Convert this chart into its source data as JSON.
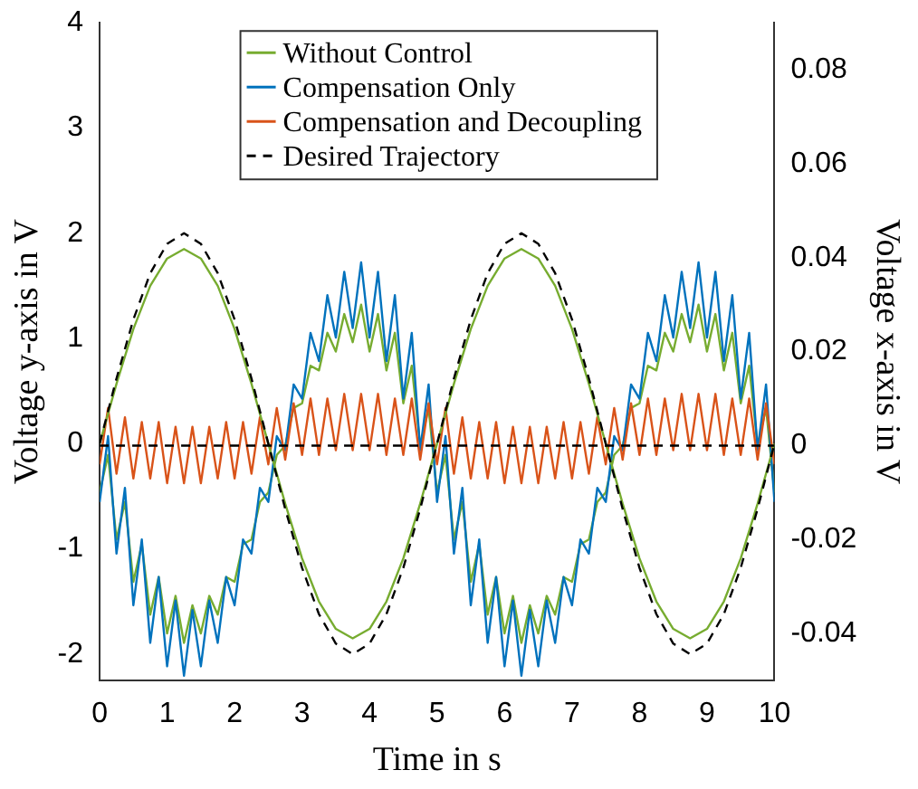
{
  "chart_data": {
    "type": "line",
    "xlabel": "Time in s",
    "ylabel": "Voltage y-axis in V",
    "y2label": "Voltage x-axis in V",
    "x": [
      0,
      0.25,
      0.5,
      0.75,
      1,
      1.25,
      1.5,
      1.75,
      2,
      2.25,
      2.5,
      2.75,
      3,
      3.25,
      3.5,
      3.75,
      4,
      4.25,
      4.5,
      4.75,
      5,
      5.25,
      5.5,
      5.75,
      6,
      6.25,
      6.5,
      6.75,
      7,
      7.25,
      7.5,
      7.75,
      8,
      8.25,
      8.5,
      8.75,
      9,
      9.25,
      9.5,
      9.75,
      10
    ],
    "xlim": [
      0,
      10
    ],
    "xticks": [
      0,
      1,
      2,
      3,
      4,
      5,
      6,
      7,
      8,
      9,
      10
    ],
    "ylim": [
      -2.25,
      4
    ],
    "yticks": [
      -2,
      -1,
      0,
      1,
      2,
      3,
      4
    ],
    "y2lim": [
      -0.05,
      0.09
    ],
    "y2ticks": [
      -0.04,
      -0.02,
      0,
      0.02,
      0.04,
      0.06,
      0.08
    ],
    "grid": false,
    "legend": "top",
    "marker": "none",
    "series": [
      {
        "name": "Without Control",
        "axis": "y2",
        "color": "#77ac30",
        "x": [
          0,
          0.125,
          0.25,
          0.375,
          0.5,
          0.625,
          0.75,
          0.875,
          1,
          1.125,
          1.25,
          1.375,
          1.5,
          1.625,
          1.75,
          1.875,
          2,
          2.125,
          2.25,
          2.375,
          2.5,
          2.625,
          2.75,
          2.875,
          3,
          3.125,
          3.25,
          3.375,
          3.5,
          3.625,
          3.75,
          3.875,
          4,
          4.125,
          4.25,
          4.375,
          4.5,
          4.625,
          4.75,
          4.875,
          5,
          5.125,
          5.25,
          5.375,
          5.5,
          5.625,
          5.75,
          5.875,
          6,
          6.125,
          6.25,
          6.375,
          6.5,
          6.625,
          6.75,
          6.875,
          7,
          7.125,
          7.25,
          7.375,
          7.5,
          7.625,
          7.75,
          7.875,
          8,
          8.125,
          8.25,
          8.375,
          8.5,
          8.625,
          8.75,
          8.875,
          9,
          9.125,
          9.25,
          9.375,
          9.5,
          9.625,
          9.75,
          9.875,
          10
        ],
        "values": [
          -0.01,
          -0.002,
          -0.02,
          -0.012,
          -0.029,
          -0.021,
          -0.036,
          -0.028,
          -0.04,
          -0.032,
          -0.042,
          -0.034,
          -0.04,
          -0.032,
          -0.036,
          -0.028,
          -0.029,
          -0.021,
          -0.02,
          -0.012,
          -0.01,
          -0.002,
          0,
          0.008,
          0.009,
          0.017,
          0.016,
          0.024,
          0.02,
          0.028,
          0.022,
          0.03,
          0.02,
          0.028,
          0.016,
          0.024,
          0.009,
          0.017,
          0,
          0.008,
          -0.01,
          -0.002,
          -0.02,
          -0.012,
          -0.029,
          -0.021,
          -0.036,
          -0.028,
          -0.04,
          -0.032,
          -0.042,
          -0.034,
          -0.04,
          -0.032,
          -0.036,
          -0.028,
          -0.029,
          -0.021,
          -0.02,
          -0.012,
          -0.01,
          -0.002,
          0,
          0.008,
          0.009,
          0.017,
          0.016,
          0.024,
          0.02,
          0.028,
          0.022,
          0.03,
          0.02,
          0.028,
          0.016,
          0.024,
          0.009,
          0.017,
          0,
          0.008,
          -0.01
        ]
      },
      {
        "name": "Compensation Only",
        "axis": "y2",
        "color": "#0072bd",
        "x": [
          0,
          0.125,
          0.25,
          0.375,
          0.5,
          0.625,
          0.75,
          0.875,
          1,
          1.125,
          1.25,
          1.375,
          1.5,
          1.625,
          1.75,
          1.875,
          2,
          2.125,
          2.25,
          2.375,
          2.5,
          2.625,
          2.75,
          2.875,
          3,
          3.125,
          3.25,
          3.375,
          3.5,
          3.625,
          3.75,
          3.875,
          4,
          4.125,
          4.25,
          4.375,
          4.5,
          4.625,
          4.75,
          4.875,
          5,
          5.125,
          5.25,
          5.375,
          5.5,
          5.625,
          5.75,
          5.875,
          6,
          6.125,
          6.25,
          6.375,
          6.5,
          6.625,
          6.75,
          6.875,
          7,
          7.125,
          7.25,
          7.375,
          7.5,
          7.625,
          7.75,
          7.875,
          8,
          8.125,
          8.25,
          8.375,
          8.5,
          8.625,
          8.75,
          8.875,
          9,
          9.125,
          9.25,
          9.375,
          9.5,
          9.625,
          9.75,
          9.875,
          10
        ],
        "values": [
          -0.012,
          0.002,
          -0.023,
          -0.009,
          -0.034,
          -0.02,
          -0.042,
          -0.028,
          -0.047,
          -0.033,
          -0.049,
          -0.035,
          -0.047,
          -0.033,
          -0.042,
          -0.028,
          -0.034,
          -0.02,
          -0.023,
          -0.009,
          -0.012,
          0.002,
          -0.001,
          0.013,
          0.01,
          0.024,
          0.018,
          0.032,
          0.023,
          0.037,
          0.025,
          0.039,
          0.023,
          0.037,
          0.018,
          0.032,
          0.01,
          0.024,
          -0.001,
          0.013,
          -0.012,
          0.002,
          -0.023,
          -0.009,
          -0.034,
          -0.02,
          -0.042,
          -0.028,
          -0.047,
          -0.033,
          -0.049,
          -0.035,
          -0.047,
          -0.033,
          -0.042,
          -0.028,
          -0.034,
          -0.02,
          -0.023,
          -0.009,
          -0.012,
          0.002,
          -0.001,
          0.013,
          0.01,
          0.024,
          0.018,
          0.032,
          0.023,
          0.037,
          0.025,
          0.039,
          0.023,
          0.037,
          0.018,
          0.032,
          0.01,
          0.024,
          -0.001,
          0.013,
          -0.012
        ]
      },
      {
        "name": "Compensation and Decoupling",
        "axis": "y2",
        "color": "#d95319",
        "x": [
          0,
          0.125,
          0.25,
          0.375,
          0.5,
          0.625,
          0.75,
          0.875,
          1,
          1.125,
          1.25,
          1.375,
          1.5,
          1.625,
          1.75,
          1.875,
          2,
          2.125,
          2.25,
          2.375,
          2.5,
          2.625,
          2.75,
          2.875,
          3,
          3.125,
          3.25,
          3.375,
          3.5,
          3.625,
          3.75,
          3.875,
          4,
          4.125,
          4.25,
          4.375,
          4.5,
          4.625,
          4.75,
          4.875,
          5,
          5.125,
          5.25,
          5.375,
          5.5,
          5.625,
          5.75,
          5.875,
          6,
          6.125,
          6.25,
          6.375,
          6.5,
          6.625,
          6.75,
          6.875,
          7,
          7.125,
          7.25,
          7.375,
          7.5,
          7.625,
          7.75,
          7.875,
          8,
          8.125,
          8.25,
          8.375,
          8.5,
          8.625,
          8.75,
          8.875,
          9,
          9.125,
          9.25,
          9.375,
          9.5,
          9.625,
          9.75,
          9.875,
          10
        ],
        "values": [
          -0.004,
          0.008,
          -0.006,
          0.006,
          -0.007,
          0.005,
          -0.007,
          0.005,
          -0.008,
          0.004,
          -0.008,
          0.004,
          -0.008,
          0.004,
          -0.007,
          0.005,
          -0.007,
          0.005,
          -0.006,
          0.006,
          -0.004,
          0.008,
          -0.003,
          0.009,
          -0.002,
          0.01,
          -0.002,
          0.01,
          -0.001,
          0.011,
          -0.001,
          0.011,
          -0.001,
          0.011,
          -0.002,
          0.01,
          -0.002,
          0.01,
          -0.003,
          0.009,
          -0.004,
          0.008,
          -0.006,
          0.006,
          -0.007,
          0.005,
          -0.007,
          0.005,
          -0.008,
          0.004,
          -0.008,
          0.004,
          -0.008,
          0.004,
          -0.007,
          0.005,
          -0.007,
          0.005,
          -0.006,
          0.006,
          -0.004,
          0.008,
          -0.003,
          0.009,
          -0.002,
          0.01,
          -0.002,
          0.01,
          -0.001,
          0.011,
          -0.001,
          0.011,
          -0.001,
          0.011,
          -0.002,
          0.01,
          -0.002,
          0.01,
          -0.003,
          0.009,
          -0.004
        ]
      },
      {
        "color": "#77ac30",
        "values": [
          0,
          0.57,
          1.09,
          1.5,
          1.76,
          1.85,
          1.76,
          1.5,
          1.09,
          0.57,
          0,
          -0.57,
          -1.09,
          -1.5,
          -1.76,
          -1.85,
          -1.76,
          -1.5,
          -1.09,
          -0.57,
          0,
          0.57,
          1.09,
          1.5,
          1.76,
          1.85,
          1.76,
          1.5,
          1.09,
          0.57,
          0,
          -0.57,
          -1.09,
          -1.5,
          -1.76,
          -1.85,
          -1.76,
          -1.5,
          -1.09,
          -0.57,
          0
        ]
      },
      {
        "name": "Desired Trajectory",
        "color": "#000000",
        "line_style": "dashed",
        "values": [
          0,
          0.62,
          1.18,
          1.62,
          1.9,
          2,
          1.9,
          1.62,
          1.18,
          0.62,
          0,
          -0.62,
          -1.18,
          -1.62,
          -1.9,
          -2,
          -1.9,
          -1.62,
          -1.18,
          -0.62,
          0,
          0.62,
          1.18,
          1.62,
          1.9,
          2,
          1.9,
          1.62,
          1.18,
          0.62,
          0,
          -0.62,
          -1.18,
          -1.62,
          -1.9,
          -2,
          -1.9,
          -1.62,
          -1.18,
          -0.62,
          0
        ]
      },
      {
        "axis": "y2",
        "color": "#000000",
        "line_style": "dashed",
        "x": [
          0,
          10
        ],
        "values": [
          0,
          0
        ]
      }
    ]
  }
}
